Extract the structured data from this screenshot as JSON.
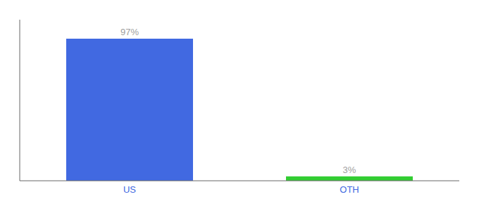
{
  "chart_data": {
    "type": "bar",
    "categories": [
      "US",
      "OTH"
    ],
    "values": [
      97,
      3
    ],
    "value_labels": [
      "97%",
      "3%"
    ],
    "data_labels": true,
    "colors": [
      "#4169e1",
      "#32cd32"
    ],
    "ylim": [
      0,
      110
    ],
    "grid": false,
    "tick_labels": "x"
  }
}
